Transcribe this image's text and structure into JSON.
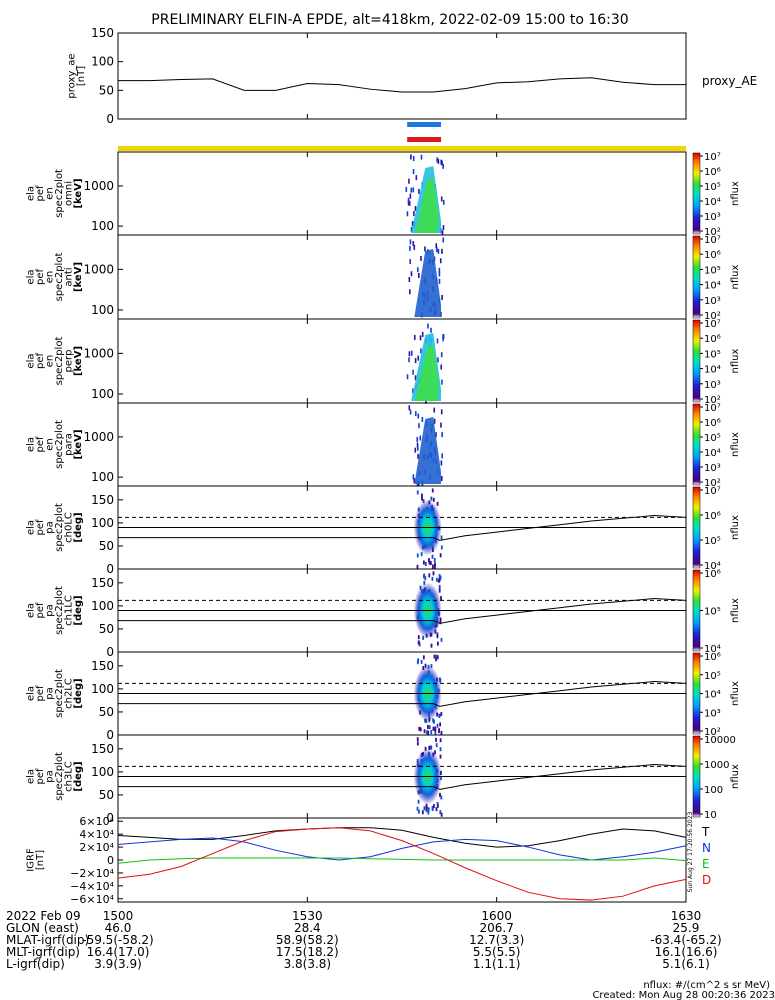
{
  "title": "PRELIMINARY ELFIN-A EPDE, alt=418km, 2022-02-09 15:00 to 16:30",
  "time_range": {
    "start": "2022-02-09 15:00",
    "end": "2022-02-09 16:30",
    "start_minutes": 0,
    "end_minutes": 90
  },
  "colors": {
    "bar_blue": "#1f78e0",
    "bar_red": "#e01818",
    "bar_yellow": "#f2d400",
    "line_T": "#000000",
    "line_N": "#1030e0",
    "line_E": "#10c010",
    "line_D": "#e01010",
    "pad_dashed": "#000000"
  },
  "chart_data": [
    {
      "type": "line",
      "panel": "proxy_ae",
      "ylabel_lines": [
        "proxy_ae",
        "[nT]"
      ],
      "legend": "proxy_AE",
      "ylim": [
        0,
        150
      ],
      "yticks": [
        "0",
        "50",
        "100",
        "150"
      ],
      "yticks_values": [
        0,
        50,
        100,
        150
      ],
      "x_minutes": [
        0,
        5,
        10,
        15,
        20,
        25,
        30,
        35,
        40,
        45,
        50,
        55,
        60,
        65,
        70,
        75,
        80,
        85,
        90
      ],
      "values": [
        67,
        67,
        69,
        70,
        50,
        50,
        62,
        60,
        52,
        47,
        47,
        53,
        63,
        65,
        70,
        72,
        64,
        60,
        60
      ]
    },
    {
      "type": "heatmap",
      "panel": "elfin-a_pef_en_spec2plot_omni",
      "ylabel_lines": [
        "ela",
        "pef",
        "en",
        "spec2plot",
        "omni",
        "[keV]"
      ],
      "yscale": "log",
      "ylim_keV": [
        60,
        7000
      ],
      "yticks": [
        "100",
        "1000"
      ],
      "yticks_values": [
        100,
        1000
      ],
      "colorbar_label": "nflux",
      "colorbar_ticks": [
        "10²",
        "10³",
        "10⁴",
        "10⁵",
        "10⁶",
        "10⁷"
      ],
      "activity_minutes": [
        45.5,
        51.5
      ],
      "peak_minutes": 49
    },
    {
      "type": "heatmap",
      "panel": "elfin-a_pef_en_spec2plot_anti",
      "ylabel_lines": [
        "ela",
        "pef",
        "en",
        "spec2plot",
        "anti",
        "[keV]"
      ],
      "yscale": "log",
      "ylim_keV": [
        60,
        7000
      ],
      "yticks": [
        "100",
        "1000"
      ],
      "yticks_values": [
        100,
        1000
      ],
      "colorbar_label": "nflux",
      "colorbar_ticks": [
        "10²",
        "10³",
        "10⁴",
        "10⁵",
        "10⁶",
        "10⁷"
      ],
      "activity_minutes": [
        46,
        51.5
      ],
      "peak_minutes": 49
    },
    {
      "type": "heatmap",
      "panel": "elfin-a_pef_en_spec2plot_perp",
      "ylabel_lines": [
        "ela",
        "pef",
        "en",
        "spec2plot",
        "perp",
        "[keV]"
      ],
      "yscale": "log",
      "ylim_keV": [
        60,
        7000
      ],
      "yticks": [
        "100",
        "1000"
      ],
      "yticks_values": [
        100,
        1000
      ],
      "colorbar_label": "nflux",
      "colorbar_ticks": [
        "10²",
        "10³",
        "10⁴",
        "10⁵",
        "10⁶",
        "10⁷"
      ],
      "activity_minutes": [
        45.5,
        51.5
      ],
      "peak_minutes": 49
    },
    {
      "type": "heatmap",
      "panel": "elfin-a_pef_en_spec2plot_para",
      "ylabel_lines": [
        "ela",
        "pef",
        "en",
        "spec2plot",
        "para",
        "[keV]"
      ],
      "yscale": "log",
      "ylim_keV": [
        60,
        7000
      ],
      "yticks": [
        "100",
        "1000"
      ],
      "yticks_values": [
        100,
        1000
      ],
      "colorbar_label": "nflux",
      "colorbar_ticks": [
        "10²",
        "10³",
        "10⁴",
        "10⁵",
        "10⁶",
        "10⁷"
      ],
      "activity_minutes": [
        46,
        51.5
      ],
      "peak_minutes": 49
    },
    {
      "type": "heatmap",
      "panel": "elfin-a_pef_pa_spec2plot_ch0LC",
      "ylabel_lines": [
        "ela",
        "pef",
        "pa",
        "spec2plot",
        "ch0LC",
        "[deg]"
      ],
      "yscale": "linear",
      "ylim": [
        0,
        180
      ],
      "yticks": [
        "0",
        "50",
        "100",
        "150"
      ],
      "yticks_values": [
        0,
        50,
        100,
        150
      ],
      "colorbar_label": "nflux",
      "colorbar_ticks": [
        "10⁴",
        "10⁵",
        "10⁶",
        "10⁷"
      ],
      "activity_minutes": [
        46,
        51.5
      ],
      "lc_solid_deg": [
        68,
        68,
        68,
        68,
        68,
        68,
        68,
        68,
        62,
        72,
        80,
        88,
        96,
        104,
        110,
        116,
        112
      ],
      "lc_dashed_deg": [
        112,
        112,
        112,
        112,
        112,
        112,
        112,
        112,
        112,
        112,
        112,
        112,
        112,
        112,
        112,
        112,
        112
      ],
      "lc_x_minutes": [
        0,
        10,
        20,
        30,
        40,
        45,
        48,
        50,
        51,
        55,
        60,
        65,
        70,
        75,
        80,
        85,
        90
      ]
    },
    {
      "type": "heatmap",
      "panel": "elfin-a_pef_pa_spec2plot_ch1LC",
      "ylabel_lines": [
        "ela",
        "pef",
        "pa",
        "spec2plot",
        "ch1LC",
        "[deg]"
      ],
      "yscale": "linear",
      "ylim": [
        0,
        180
      ],
      "yticks": [
        "0",
        "50",
        "100",
        "150"
      ],
      "yticks_values": [
        0,
        50,
        100,
        150
      ],
      "colorbar_label": "nflux",
      "colorbar_ticks": [
        "10⁴",
        "10⁵",
        "10⁶"
      ],
      "activity_minutes": [
        46,
        51.5
      ],
      "lc_solid_deg": [
        68,
        68,
        68,
        68,
        68,
        68,
        68,
        68,
        62,
        72,
        80,
        88,
        96,
        104,
        110,
        116,
        112
      ],
      "lc_dashed_deg": [
        112,
        112,
        112,
        112,
        112,
        112,
        112,
        112,
        112,
        112,
        112,
        112,
        112,
        112,
        112,
        112,
        112
      ],
      "lc_x_minutes": [
        0,
        10,
        20,
        30,
        40,
        45,
        48,
        50,
        51,
        55,
        60,
        65,
        70,
        75,
        80,
        85,
        90
      ]
    },
    {
      "type": "heatmap",
      "panel": "elfin-a_pef_pa_spec2plot_ch2LC",
      "ylabel_lines": [
        "ela",
        "pef",
        "pa",
        "spec2plot",
        "ch2LC",
        "[deg]"
      ],
      "yscale": "linear",
      "ylim": [
        0,
        180
      ],
      "yticks": [
        "0",
        "50",
        "100",
        "150"
      ],
      "yticks_values": [
        0,
        50,
        100,
        150
      ],
      "colorbar_label": "nflux",
      "colorbar_ticks": [
        "10²",
        "10³",
        "10⁴",
        "10⁵",
        "10⁶"
      ],
      "activity_minutes": [
        46,
        51.5
      ],
      "lc_solid_deg": [
        68,
        68,
        68,
        68,
        68,
        68,
        68,
        68,
        62,
        72,
        80,
        88,
        96,
        104,
        110,
        116,
        112
      ],
      "lc_dashed_deg": [
        112,
        112,
        112,
        112,
        112,
        112,
        112,
        112,
        112,
        112,
        112,
        112,
        112,
        112,
        112,
        112,
        112
      ],
      "lc_x_minutes": [
        0,
        10,
        20,
        30,
        40,
        45,
        48,
        50,
        51,
        55,
        60,
        65,
        70,
        75,
        80,
        85,
        90
      ]
    },
    {
      "type": "heatmap",
      "panel": "elfin-a_pef_pa_spec2plot_ch3LC",
      "ylabel_lines": [
        "ela",
        "pef",
        "pa",
        "spec2plot",
        "ch3LC",
        "[deg]"
      ],
      "yscale": "linear",
      "ylim": [
        0,
        180
      ],
      "yticks": [
        "0",
        "50",
        "100",
        "150"
      ],
      "yticks_values": [
        0,
        50,
        100,
        150
      ],
      "colorbar_label": "nflux",
      "colorbar_ticks": [
        "10",
        "100",
        "1000",
        "10000"
      ],
      "activity_minutes": [
        46,
        51.5
      ],
      "lc_solid_deg": [
        68,
        68,
        68,
        68,
        68,
        68,
        68,
        68,
        62,
        72,
        80,
        88,
        96,
        104,
        110,
        116,
        112
      ],
      "lc_dashed_deg": [
        112,
        112,
        112,
        112,
        112,
        112,
        112,
        112,
        112,
        112,
        112,
        112,
        112,
        112,
        112,
        112,
        112
      ],
      "lc_x_minutes": [
        0,
        10,
        20,
        30,
        40,
        45,
        48,
        50,
        51,
        55,
        60,
        65,
        70,
        75,
        80,
        85,
        90
      ]
    },
    {
      "type": "line",
      "panel": "IGRF",
      "ylabel_lines": [
        "IGRF",
        "[nT]"
      ],
      "ylim": [
        -65000,
        65000
      ],
      "yticks": [
        "6×10⁴",
        "4×10⁴",
        "2×10⁴",
        "0",
        "−2×10⁴",
        "−4×10⁴",
        "−6×10⁴"
      ],
      "yticks_values": [
        60000,
        40000,
        20000,
        0,
        -20000,
        -40000,
        -60000
      ],
      "x_minutes": [
        0,
        5,
        10,
        15,
        20,
        25,
        30,
        35,
        40,
        45,
        50,
        55,
        60,
        65,
        70,
        75,
        80,
        85,
        90
      ],
      "series": [
        {
          "name": "T",
          "values": [
            38000,
            35000,
            32000,
            32000,
            38000,
            45000,
            48000,
            50000,
            50000,
            46000,
            35000,
            26000,
            20000,
            22000,
            30000,
            40000,
            48000,
            45000,
            35000
          ]
        },
        {
          "name": "N",
          "values": [
            24000,
            28000,
            32000,
            34000,
            28000,
            15000,
            5000,
            0,
            5000,
            18000,
            28000,
            32000,
            30000,
            20000,
            8000,
            0,
            5000,
            12000,
            22000
          ]
        },
        {
          "name": "E",
          "values": [
            -5000,
            0,
            2000,
            3000,
            3000,
            3000,
            3000,
            3000,
            2000,
            1000,
            0,
            0,
            0,
            0,
            0,
            0,
            0,
            3000,
            -1000
          ]
        },
        {
          "name": "D",
          "values": [
            -28000,
            -22000,
            -10000,
            10000,
            30000,
            44000,
            48000,
            50000,
            45000,
            30000,
            10000,
            -12000,
            -32000,
            -50000,
            -60000,
            -62000,
            -56000,
            -40000,
            -30000
          ]
        }
      ],
      "side_labels": [
        "Sun Aug 27 17:20:56 2023"
      ]
    }
  ],
  "xaxis": {
    "rows": [
      {
        "label": "2022 Feb 09",
        "values": [
          "1500",
          "1530",
          "1600",
          "1630"
        ]
      },
      {
        "label": "GLON (east)",
        "values": [
          "46.0",
          "28.4",
          "206.7",
          "25.9"
        ]
      },
      {
        "label": "MLAT-igrf(dip)",
        "values": [
          "-59.5(-58.2)",
          "58.9(58.2)",
          "12.7(3.3)",
          "-63.4(-65.2)"
        ]
      },
      {
        "label": "MLT-igrf(dip)",
        "values": [
          "16.4(17.0)",
          "17.5(18.2)",
          "5.5(5.5)",
          "16.1(16.6)"
        ]
      },
      {
        "label": "L-igrf(dip)",
        "values": [
          "3.9(3.9)",
          "3.8(3.8)",
          "1.1(1.1)",
          "5.1(6.1)"
        ]
      }
    ]
  },
  "footer": {
    "units_note": "nflux: #/(cm^2 s sr MeV)",
    "created": "Created: Mon Aug 28 00:20:36 2023"
  }
}
